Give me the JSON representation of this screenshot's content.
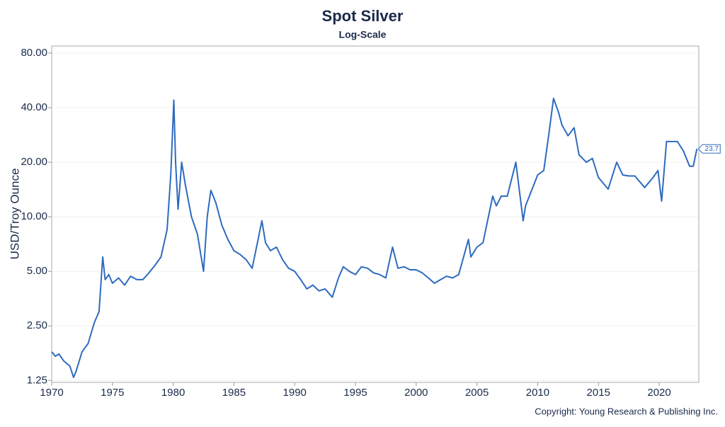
{
  "chart_data": {
    "type": "line",
    "title": "Spot Silver",
    "subtitle": "Log-Scale",
    "y_label": "USD/Troy Ounce",
    "copyright": "Copyright: Young Research & Publishing Inc.",
    "log_y": true,
    "grid": true,
    "xlim": [
      1970,
      2023.26
    ],
    "xticks": [
      1970,
      1975,
      1980,
      1985,
      1990,
      1995,
      2000,
      2005,
      2010,
      2015,
      2020
    ],
    "ylim": [
      1.22,
      87.5
    ],
    "yticks": [
      {
        "value": 1.25,
        "label": "1.25"
      },
      {
        "value": 2.5,
        "label": "2.50"
      },
      {
        "value": 5,
        "label": "5.00"
      },
      {
        "value": 10,
        "label": "10.00"
      },
      {
        "value": 20,
        "label": "20.00"
      },
      {
        "value": 40,
        "label": "40.00"
      },
      {
        "value": 80,
        "label": "80.00"
      }
    ],
    "x": [
      1970,
      1970.3,
      1970.6,
      1971,
      1971.5,
      1971.8,
      1972,
      1972.5,
      1973,
      1973.5,
      1973.9,
      1974.2,
      1974.4,
      1974.7,
      1975,
      1975.5,
      1976,
      1976.5,
      1977,
      1977.5,
      1978,
      1978.5,
      1979,
      1979.5,
      1979.8,
      1980.05,
      1980.2,
      1980.4,
      1980.7,
      1981,
      1981.5,
      1982,
      1982.5,
      1982.8,
      1983.1,
      1983.5,
      1984,
      1984.5,
      1985,
      1985.5,
      1986,
      1986.5,
      1987.3,
      1987.6,
      1988,
      1988.5,
      1989,
      1989.5,
      1990,
      1990.5,
      1991,
      1991.5,
      1992,
      1992.5,
      1993.1,
      1993.6,
      1994,
      1994.5,
      1995,
      1995.5,
      1996,
      1996.5,
      1997,
      1997.5,
      1998.05,
      1998.5,
      1999,
      1999.5,
      2000,
      2000.5,
      2001,
      2001.5,
      2002,
      2002.5,
      2003,
      2003.5,
      2004.3,
      2004.5,
      2005,
      2005.5,
      2006.3,
      2006.6,
      2007,
      2007.5,
      2008.2,
      2008.8,
      2009,
      2009.5,
      2010,
      2010.5,
      2010.9,
      2011.3,
      2011.7,
      2012,
      2012.5,
      2013,
      2013.4,
      2014,
      2014.5,
      2015,
      2015.8,
      2016.5,
      2017,
      2017.5,
      2018,
      2018.8,
      2019.5,
      2019.9,
      2020.2,
      2020.6,
      2021,
      2021.5,
      2022,
      2022.5,
      2022.8,
      2023.1
    ],
    "series": [
      {
        "name": "Spot Silver",
        "color": "#2e6bbf",
        "values": [
          1.8,
          1.7,
          1.75,
          1.6,
          1.5,
          1.3,
          1.4,
          1.8,
          2.0,
          2.6,
          3.0,
          6.0,
          4.5,
          4.8,
          4.3,
          4.6,
          4.2,
          4.7,
          4.5,
          4.5,
          4.9,
          5.4,
          6.0,
          8.5,
          17,
          44,
          20,
          11,
          20,
          15,
          10,
          8,
          5.0,
          10,
          14,
          12,
          9,
          7.5,
          6.5,
          6.2,
          5.8,
          5.2,
          9.5,
          7.2,
          6.5,
          6.8,
          5.8,
          5.2,
          5.0,
          4.5,
          4.0,
          4.2,
          3.9,
          4.0,
          3.6,
          4.6,
          5.3,
          5.0,
          4.8,
          5.3,
          5.2,
          4.9,
          4.8,
          4.6,
          6.8,
          5.2,
          5.3,
          5.1,
          5.1,
          4.9,
          4.6,
          4.3,
          4.5,
          4.7,
          4.6,
          4.8,
          7.5,
          6.0,
          6.8,
          7.2,
          13,
          11.5,
          13,
          13,
          20,
          9.5,
          11.5,
          14,
          17,
          18,
          28,
          45,
          38,
          32,
          28,
          31,
          22,
          20,
          21,
          16.5,
          14.2,
          20,
          17,
          16.8,
          16.8,
          14.5,
          16.5,
          18,
          12.2,
          26,
          26,
          26,
          23,
          19,
          19,
          23.7
        ]
      }
    ]
  }
}
